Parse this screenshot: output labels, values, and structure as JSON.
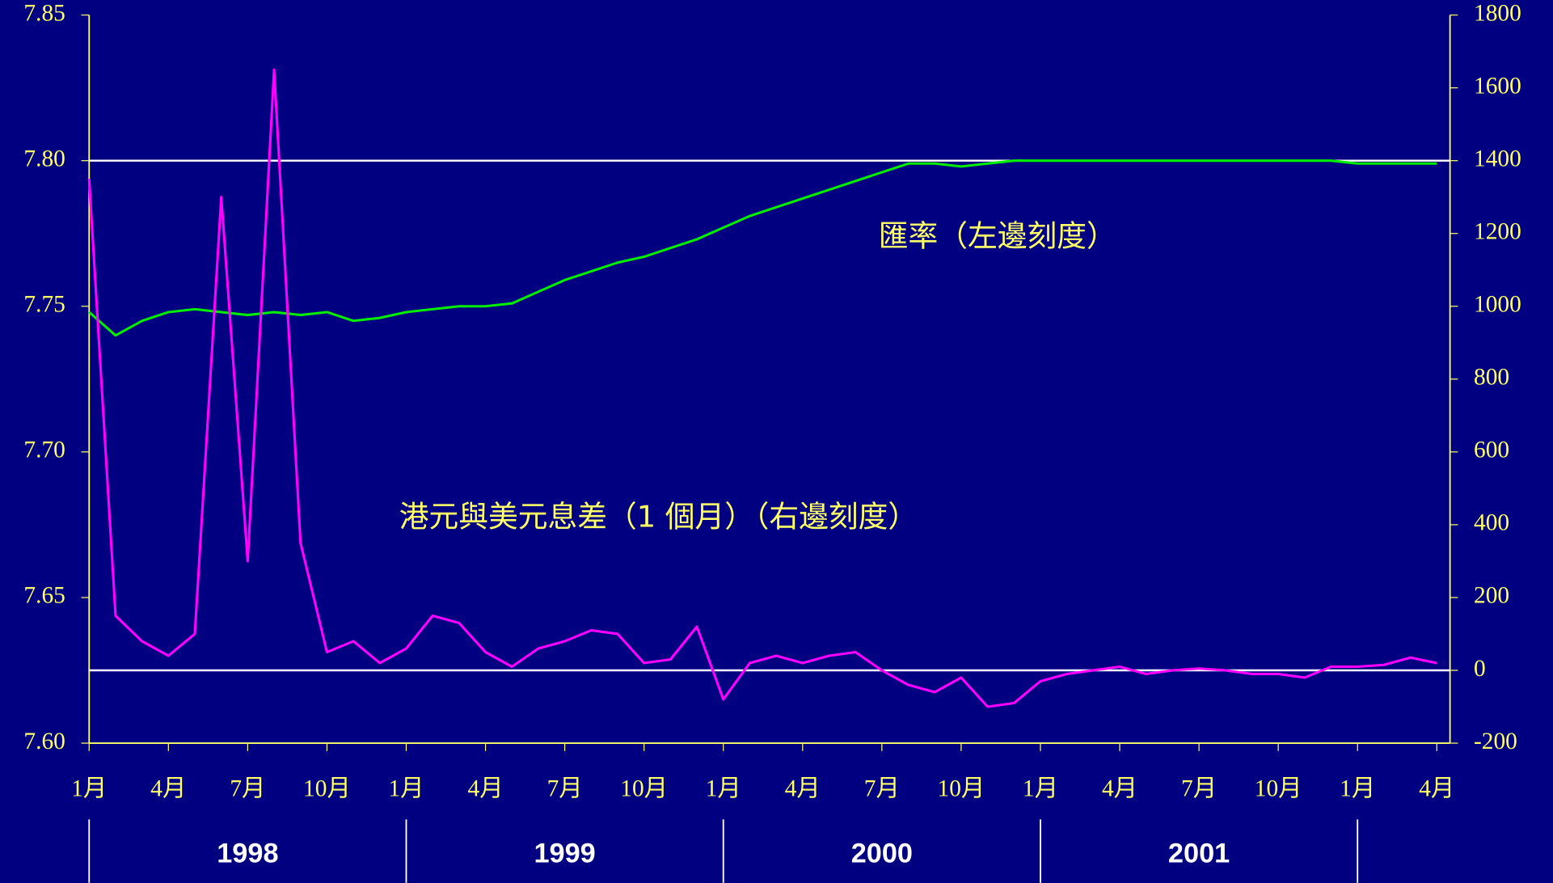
{
  "chart_data": {
    "type": "line",
    "x": [
      "1998-01",
      "1998-02",
      "1998-03",
      "1998-04",
      "1998-05",
      "1998-06",
      "1998-07",
      "1998-08",
      "1998-09",
      "1998-10",
      "1998-11",
      "1998-12",
      "1999-01",
      "1999-02",
      "1999-03",
      "1999-04",
      "1999-05",
      "1999-06",
      "1999-07",
      "1999-08",
      "1999-09",
      "1999-10",
      "1999-11",
      "1999-12",
      "2000-01",
      "2000-02",
      "2000-03",
      "2000-04",
      "2000-05",
      "2000-06",
      "2000-07",
      "2000-08",
      "2000-09",
      "2000-10",
      "2000-11",
      "2000-12",
      "2001-01",
      "2001-02",
      "2001-03",
      "2001-04",
      "2001-05",
      "2001-06",
      "2001-07",
      "2001-08",
      "2001-09",
      "2001-10",
      "2001-11",
      "2001-12",
      "2002-01",
      "2002-02",
      "2002-03",
      "2002-04"
    ],
    "series": [
      {
        "color": "#00ee00",
        "values": [
          7.748,
          7.74,
          7.745,
          7.748,
          7.749,
          7.748,
          7.747,
          7.748,
          7.747,
          7.748,
          7.745,
          7.746,
          7.748,
          7.749,
          7.75,
          7.75,
          7.751,
          7.755,
          7.759,
          7.762,
          7.765,
          7.767,
          7.77,
          7.773,
          7.777,
          7.781,
          7.784,
          7.787,
          7.79,
          7.793,
          7.796,
          7.799,
          7.799,
          7.798,
          7.799,
          7.8,
          7.8,
          7.8,
          7.8,
          7.8,
          7.8,
          7.8,
          7.8,
          7.8,
          7.8,
          7.8,
          7.8,
          7.8,
          7.799,
          7.799,
          7.799,
          7.799
        ]
      },
      {
        "color": "#ff00ff",
        "axis": "y2",
        "values": [
          1350,
          150,
          80,
          40,
          100,
          1300,
          300,
          1650,
          350,
          50,
          80,
          20,
          60,
          150,
          130,
          50,
          10,
          60,
          80,
          110,
          100,
          20,
          30,
          120,
          -80,
          20,
          40,
          20,
          40,
          50,
          0,
          -40,
          -60,
          -20,
          -100,
          -90,
          -30,
          -10,
          0,
          10,
          -10,
          0,
          5,
          0,
          -10,
          -10,
          -20,
          10,
          10,
          15,
          35,
          20
        ]
      }
    ],
    "ylim": [
      7.6,
      7.85
    ],
    "yticks": [
      {
        "value": 7.6,
        "label": "7.60"
      },
      {
        "value": 7.65,
        "label": "7.65"
      },
      {
        "value": 7.7,
        "label": "7.70"
      },
      {
        "value": 7.75,
        "label": "7.75"
      },
      {
        "value": 7.8,
        "label": "7.80"
      },
      {
        "value": 7.85,
        "label": "7.85"
      }
    ],
    "y2lim": [
      -200,
      1800
    ],
    "y2ticks": [
      -200,
      0,
      200,
      400,
      600,
      800,
      1000,
      1200,
      1400,
      1600,
      1800
    ],
    "xticks": [
      {
        "value": "1998-01",
        "label": "1月"
      },
      {
        "value": "1998-04",
        "label": "4月"
      },
      {
        "value": "1998-07",
        "label": "7月"
      },
      {
        "value": "1998-10",
        "label": "10月"
      },
      {
        "value": "1999-01",
        "label": "1月"
      },
      {
        "value": "1999-04",
        "label": "4月"
      },
      {
        "value": "1999-07",
        "label": "7月"
      },
      {
        "value": "1999-10",
        "label": "10月"
      },
      {
        "value": "2000-01",
        "label": "1月"
      },
      {
        "value": "2000-04",
        "label": "4月"
      },
      {
        "value": "2000-07",
        "label": "7月"
      },
      {
        "value": "2000-10",
        "label": "10月"
      },
      {
        "value": "2001-01",
        "label": "1月"
      },
      {
        "value": "2001-04",
        "label": "4月"
      },
      {
        "value": "2001-07",
        "label": "7月"
      },
      {
        "value": "2001-10",
        "label": "10月"
      },
      {
        "value": "2002-01",
        "label": "1月"
      },
      {
        "value": "2002-04",
        "label": "4月"
      }
    ],
    "years": [
      "1998",
      "1999",
      "2000",
      "2001"
    ],
    "reference_lines": [
      {
        "axis": "y",
        "value": 7.8
      },
      {
        "axis": "y2",
        "value": 0
      }
    ],
    "annotations": [
      "匯率（左邊刻度）",
      "港元與美元息差（1 個月）（右邊刻度）"
    ]
  }
}
